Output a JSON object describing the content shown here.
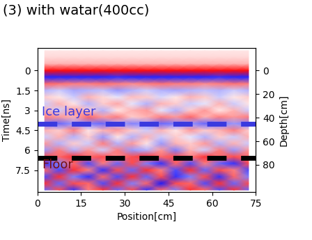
{
  "chart_data": {
    "type": "heatmap",
    "title": "(3) with watar(400cc)",
    "x_label": "Position[cm]",
    "y_label": "Time[ns]",
    "y2_label": "Depth[cm]",
    "xlim": [
      0,
      75
    ],
    "xticks": [
      0,
      15,
      30,
      45,
      60,
      75
    ],
    "ylim": [
      9.15,
      -1.7
    ],
    "yticks": [
      0,
      1.5,
      3,
      4.5,
      6,
      7.5
    ],
    "y2lim": [
      103,
      -19
    ],
    "y2ticks": [
      0,
      20,
      40,
      60,
      80
    ],
    "x": [
      2.5,
      7.5,
      12.5,
      17.5,
      22.5,
      27.5,
      32.5,
      37.5,
      42.5,
      47.5,
      52.5,
      57.5,
      62.5,
      67.5,
      72.5
    ],
    "y": [
      -1.5,
      -1.0,
      -0.5,
      0,
      0.5,
      1.0,
      1.5,
      2.0,
      2.5,
      3.0,
      3.5,
      4.0,
      4.5,
      5.0,
      5.5,
      6.0,
      6.5,
      7.0,
      7.5,
      8.0,
      8.5,
      9.0
    ],
    "cells": [
      [
        0.1,
        0.1,
        0.1,
        0.1,
        0.1,
        0.1,
        0.1,
        0.1,
        0.1,
        0.1,
        0.1,
        0.1,
        0.1,
        0.1,
        0.1
      ],
      [
        0.15,
        0.15,
        0.15,
        0.15,
        0.15,
        0.15,
        0.15,
        0.15,
        0.15,
        0.15,
        0.15,
        0.15,
        0.15,
        0.15,
        0.15
      ],
      [
        0.3,
        0.3,
        0.3,
        0.3,
        0.3,
        0.3,
        0.3,
        0.3,
        0.3,
        0.3,
        0.3,
        0.3,
        0.3,
        0.3,
        0.3
      ],
      [
        0.95,
        0.95,
        0.95,
        0.95,
        0.95,
        0.95,
        0.95,
        0.95,
        0.95,
        0.95,
        0.95,
        0.95,
        0.95,
        0.95,
        0.95
      ],
      [
        -0.85,
        -0.85,
        -0.85,
        -0.85,
        -0.85,
        -0.8,
        -0.85,
        -0.85,
        -0.85,
        -0.85,
        -0.85,
        -0.85,
        -0.8,
        -0.85,
        -0.85
      ],
      [
        0.6,
        0.55,
        0.5,
        0.5,
        0.55,
        0.5,
        0.45,
        0.5,
        0.55,
        0.5,
        0.5,
        0.45,
        0.5,
        0.55,
        0.5
      ],
      [
        -0.3,
        -0.2,
        -0.35,
        -0.3,
        -0.25,
        -0.4,
        -0.3,
        -0.2,
        -0.3,
        -0.35,
        -0.3,
        -0.25,
        -0.3,
        -0.2,
        -0.3
      ],
      [
        0.2,
        0.1,
        -0.2,
        0.3,
        0.15,
        -0.1,
        0.25,
        0.2,
        -0.15,
        0.1,
        0.3,
        0.2,
        -0.2,
        0.1,
        0.2
      ],
      [
        -0.2,
        0.3,
        0.1,
        -0.3,
        0.2,
        0.35,
        -0.1,
        -0.3,
        0.3,
        0.2,
        -0.2,
        -0.1,
        0.3,
        -0.2,
        0.1
      ],
      [
        0.3,
        -0.2,
        0.4,
        0.2,
        -0.3,
        0.1,
        0.3,
        0.4,
        -0.1,
        -0.3,
        0.2,
        0.4,
        0.1,
        0.3,
        -0.2
      ],
      [
        0.5,
        0.4,
        0.3,
        0.6,
        0.4,
        0.5,
        0.2,
        0.3,
        0.5,
        0.4,
        0.6,
        0.3,
        0.5,
        0.4,
        0.5
      ],
      [
        -0.5,
        -0.6,
        -0.4,
        -0.5,
        -0.6,
        -0.3,
        -0.5,
        -0.4,
        -0.6,
        -0.5,
        -0.4,
        -0.6,
        -0.5,
        -0.4,
        -0.5
      ],
      [
        0.3,
        0.2,
        0.5,
        0.1,
        0.3,
        0.4,
        0.2,
        -0.2,
        0.3,
        0.1,
        0.4,
        0.2,
        0.3,
        0.5,
        0.2
      ],
      [
        -0.2,
        0.3,
        -0.3,
        0.2,
        -0.4,
        0.1,
        -0.3,
        0.3,
        -0.2,
        0.2,
        -0.1,
        -0.3,
        0.2,
        -0.2,
        0.3
      ],
      [
        0.4,
        -0.3,
        0.2,
        -0.2,
        0.5,
        -0.3,
        0.4,
        0.1,
        -0.4,
        0.3,
        0.2,
        0.4,
        -0.3,
        0.3,
        -0.2
      ],
      [
        -0.4,
        0.5,
        -0.3,
        0.4,
        -0.2,
        0.5,
        -0.4,
        -0.3,
        0.4,
        -0.5,
        0.3,
        -0.2,
        0.5,
        -0.4,
        0.4
      ],
      [
        0.7,
        0.6,
        0.8,
        0.6,
        0.7,
        0.5,
        0.7,
        0.8,
        0.6,
        0.7,
        0.5,
        0.8,
        0.6,
        0.7,
        0.6
      ],
      [
        -0.8,
        -0.5,
        0.6,
        -0.7,
        0.5,
        -0.6,
        0.7,
        -0.5,
        -0.8,
        0.6,
        -0.7,
        0.5,
        -0.6,
        -0.8,
        0.7
      ],
      [
        0.6,
        -0.7,
        0.8,
        0.5,
        -0.8,
        0.7,
        -0.6,
        0.8,
        0.5,
        -0.7,
        0.8,
        -0.6,
        0.7,
        0.5,
        -0.7
      ],
      [
        -0.7,
        0.8,
        -0.5,
        -0.8,
        0.6,
        -0.7,
        0.8,
        -0.6,
        0.7,
        -0.8,
        -0.5,
        0.7,
        -0.8,
        0.6,
        -0.5
      ],
      [
        0.8,
        -0.6,
        0.7,
        0.6,
        -0.7,
        0.8,
        -0.5,
        0.6,
        -0.9,
        0.7,
        0.6,
        -0.7,
        0.8,
        -0.6,
        0.7
      ],
      [
        -0.6,
        0.7,
        -0.8,
        0.5,
        0.8,
        -0.6,
        0.7,
        -0.8,
        0.6,
        -0.5,
        0.8,
        0.6,
        -0.7,
        0.8,
        -0.6
      ]
    ],
    "color_range": [
      -1,
      1
    ],
    "annotations": [
      {
        "text": "Ice layer",
        "x": 1.5,
        "y": 3.1,
        "color": "#3a3adf"
      },
      {
        "text": "Floor",
        "x": 1.5,
        "y": 7.1,
        "color": "#7a1010"
      }
    ],
    "lines": [
      {
        "y": 4.0,
        "color": "#3a3adf",
        "line_style": "dashed"
      },
      {
        "y": 6.6,
        "color": "#000000",
        "line_style": "dashed"
      }
    ]
  }
}
